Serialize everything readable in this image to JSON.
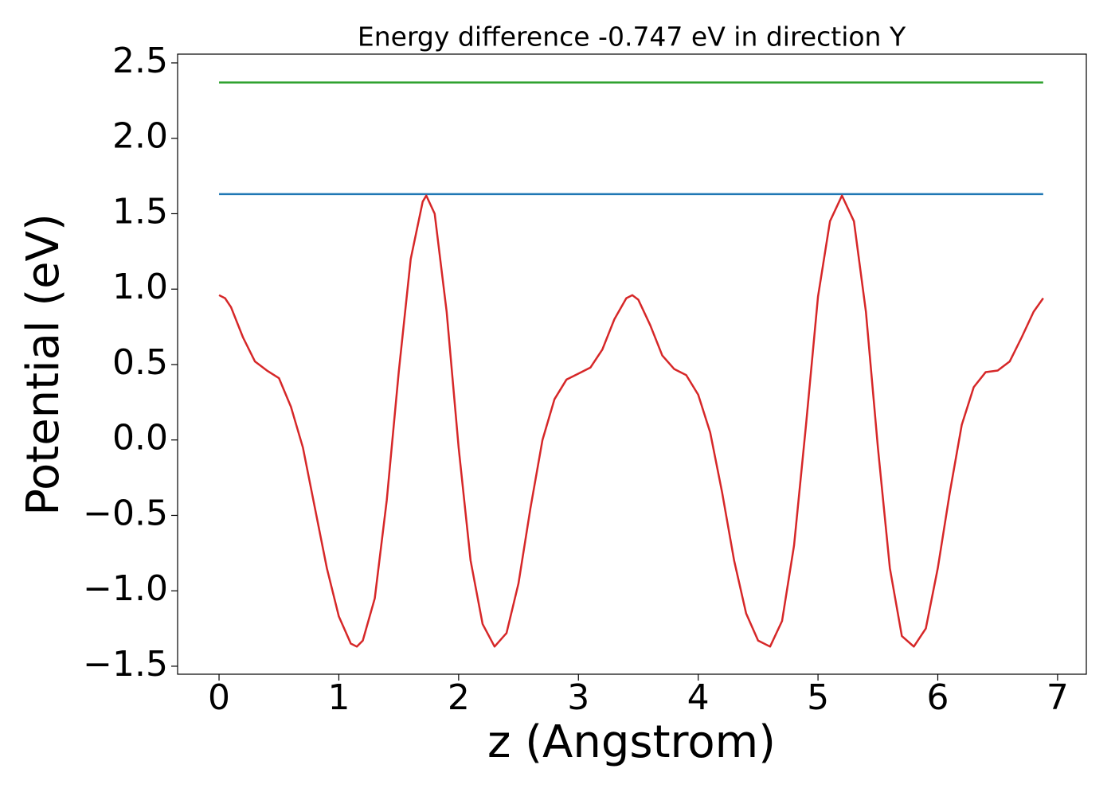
{
  "chart_data": {
    "type": "line",
    "title": "Energy difference -0.747 eV in direction Y",
    "xlabel": "z (Angstrom)",
    "ylabel": "Potential (eV)",
    "xlim": [
      -0.346,
      7.24
    ],
    "ylim": [
      -1.553,
      2.558
    ],
    "xticks": [
      0,
      1,
      2,
      3,
      4,
      5,
      6,
      7
    ],
    "yticks": [
      {
        "value": -1.5,
        "label": "−1.5"
      },
      {
        "value": -1.0,
        "label": "−1.0"
      },
      {
        "value": -0.5,
        "label": "−0.5"
      },
      {
        "value": 0,
        "label": "0.0"
      },
      0.5,
      {
        "value": 1.0,
        "label": "1.0"
      },
      1.5,
      {
        "value": 2.0,
        "label": "2.0"
      },
      2.5
    ],
    "grid": false,
    "series": [
      {
        "color": "#1f77b4",
        "x": [
          0,
          6.88
        ],
        "values": [
          1.63,
          1.63
        ]
      },
      {
        "color": "#2ca02c",
        "x": [
          0,
          6.88
        ],
        "values": [
          2.37,
          2.37
        ]
      },
      {
        "color": "#d62728",
        "x": [
          0,
          0.05,
          0.1,
          0.2,
          0.3,
          0.4,
          0.5,
          0.6,
          0.7,
          0.8,
          0.9,
          1.0,
          1.1,
          1.15,
          1.2,
          1.3,
          1.4,
          1.5,
          1.6,
          1.7,
          1.73,
          1.8,
          1.9,
          2.0,
          2.1,
          2.2,
          2.3,
          2.4,
          2.5,
          2.6,
          2.7,
          2.8,
          2.9,
          3.0,
          3.1,
          3.2,
          3.3,
          3.4,
          3.45,
          3.5,
          3.6,
          3.7,
          3.8,
          3.9,
          4.0,
          4.1,
          4.2,
          4.3,
          4.4,
          4.5,
          4.6,
          4.7,
          4.8,
          4.9,
          5.0,
          5.1,
          5.2,
          5.3,
          5.4,
          5.5,
          5.6,
          5.7,
          5.8,
          5.9,
          6.0,
          6.1,
          6.2,
          6.3,
          6.4,
          6.5,
          6.6,
          6.7,
          6.8,
          6.88
        ],
        "values": [
          0.96,
          0.94,
          0.88,
          0.68,
          0.52,
          0.46,
          0.41,
          0.22,
          -0.05,
          -0.45,
          -0.85,
          -1.17,
          -1.35,
          -1.37,
          -1.33,
          -1.05,
          -0.4,
          0.45,
          1.2,
          1.58,
          1.62,
          1.5,
          0.85,
          -0.05,
          -0.8,
          -1.22,
          -1.37,
          -1.28,
          -0.95,
          -0.45,
          0.0,
          0.27,
          0.4,
          0.44,
          0.48,
          0.6,
          0.8,
          0.94,
          0.96,
          0.93,
          0.76,
          0.56,
          0.47,
          0.43,
          0.3,
          0.05,
          -0.35,
          -0.8,
          -1.15,
          -1.33,
          -1.37,
          -1.2,
          -0.7,
          0.1,
          0.95,
          1.45,
          1.62,
          1.45,
          0.85,
          -0.05,
          -0.85,
          -1.3,
          -1.37,
          -1.25,
          -0.85,
          -0.35,
          0.1,
          0.35,
          0.45,
          0.46,
          0.52,
          0.68,
          0.85,
          0.94
        ]
      }
    ]
  }
}
